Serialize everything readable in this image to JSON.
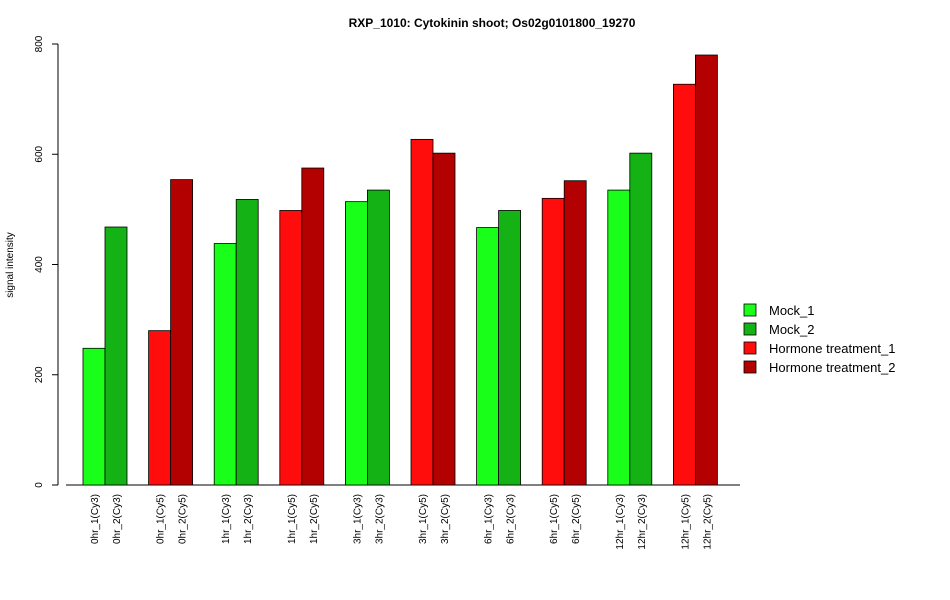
{
  "chart_data": {
    "type": "bar",
    "title": "RXP_1010: Cytokinin shoot; Os02g0101800_19270",
    "xlabel": "",
    "ylabel": "signal intensity",
    "ylim": [
      0,
      800
    ],
    "yticks": [
      0,
      200,
      400,
      600,
      800
    ],
    "grid": false,
    "legend_position": "right",
    "groups": [
      {
        "labels": [
          "0hr_1(Cy3)",
          "0hr_2(Cy3)"
        ],
        "series": [
          "Mock_1",
          "Mock_2"
        ],
        "values": [
          248,
          468
        ]
      },
      {
        "labels": [
          "0hr_1(Cy5)",
          "0hr_2(Cy5)"
        ],
        "series": [
          "Hormone treatment_1",
          "Hormone treatment_2"
        ],
        "values": [
          280,
          554
        ]
      },
      {
        "labels": [
          "1hr_1(Cy3)",
          "1hr_2(Cy3)"
        ],
        "series": [
          "Mock_1",
          "Mock_2"
        ],
        "values": [
          438,
          518
        ]
      },
      {
        "labels": [
          "1hr_1(Cy5)",
          "1hr_2(Cy5)"
        ],
        "series": [
          "Hormone treatment_1",
          "Hormone treatment_2"
        ],
        "values": [
          498,
          575
        ]
      },
      {
        "labels": [
          "3hr_1(Cy3)",
          "3hr_2(Cy3)"
        ],
        "series": [
          "Mock_1",
          "Mock_2"
        ],
        "values": [
          514,
          535
        ]
      },
      {
        "labels": [
          "3hr_1(Cy5)",
          "3hr_2(Cy5)"
        ],
        "series": [
          "Hormone treatment_1",
          "Hormone treatment_2"
        ],
        "values": [
          627,
          602
        ]
      },
      {
        "labels": [
          "6hr_1(Cy3)",
          "6hr_2(Cy3)"
        ],
        "series": [
          "Mock_1",
          "Mock_2"
        ],
        "values": [
          467,
          498
        ]
      },
      {
        "labels": [
          "6hr_1(Cy5)",
          "6hr_2(Cy5)"
        ],
        "series": [
          "Hormone treatment_1",
          "Hormone treatment_2"
        ],
        "values": [
          520,
          552
        ]
      },
      {
        "labels": [
          "12hr_1(Cy3)",
          "12hr_2(Cy3)"
        ],
        "series": [
          "Mock_1",
          "Mock_2"
        ],
        "values": [
          535,
          602
        ]
      },
      {
        "labels": [
          "12hr_1(Cy5)",
          "12hr_2(Cy5)"
        ],
        "series": [
          "Hormone treatment_1",
          "Hormone treatment_2"
        ],
        "values": [
          727,
          780
        ]
      }
    ],
    "legend": [
      {
        "name": "Mock_1",
        "color": "#1aff1a"
      },
      {
        "name": "Mock_2",
        "color": "#14b214"
      },
      {
        "name": "Hormone treatment_1",
        "color": "#ff0d0d"
      },
      {
        "name": "Hormone treatment_2",
        "color": "#b30000"
      }
    ]
  }
}
